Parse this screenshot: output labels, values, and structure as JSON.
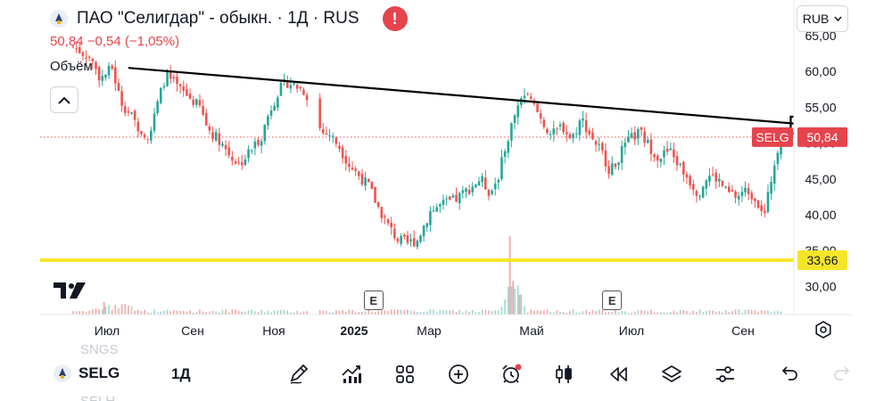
{
  "header": {
    "title": "ПАО \"Селигдар\" - обыкн. · 1Д · RUS",
    "price_change": "50,84 −0,54 (−1,05%)",
    "volume_label": "Объём",
    "currency": "RUB",
    "alert_glyph": "!"
  },
  "chart_data": {
    "type": "candlestick",
    "symbol": "SELG",
    "last_price": 50.84,
    "last_price_label": "50,84",
    "horizontal_level": 33.66,
    "horizontal_level_label": "33,66",
    "horizontal_level_color": "#f5e52a",
    "up_color": "#26a69a",
    "down_color": "#ef5350",
    "ylim": [
      26.5,
      63
    ],
    "y_ticks": [
      "30,00",
      "35,00",
      "40,00",
      "45,00",
      "50,00",
      "55,00",
      "60,00",
      "65,00"
    ],
    "x_ticks": [
      "Июл",
      "Сен",
      "Ноя",
      "2025",
      "Мар",
      "Май",
      "Июл",
      "Сен"
    ],
    "x_start": "2024-05-22",
    "close_path": [
      [
        "2024-05-22",
        63.5
      ],
      [
        "2024-06-01",
        62
      ],
      [
        "2024-06-08",
        59
      ],
      [
        "2024-06-15",
        60.5
      ],
      [
        "2024-06-20",
        56
      ],
      [
        "2024-06-26",
        54
      ],
      [
        "2024-07-02",
        52
      ],
      [
        "2024-07-08",
        51
      ],
      [
        "2024-07-13",
        55.5
      ],
      [
        "2024-07-18",
        59.5
      ],
      [
        "2024-07-24",
        58
      ],
      [
        "2024-08-01",
        56.5
      ],
      [
        "2024-08-08",
        55
      ],
      [
        "2024-08-13",
        52
      ],
      [
        "2024-08-20",
        50.5
      ],
      [
        "2024-08-26",
        48.5
      ],
      [
        "2024-09-01",
        47
      ],
      [
        "2024-09-05",
        48
      ],
      [
        "2024-09-10",
        49.5
      ],
      [
        "2024-09-15",
        51
      ],
      [
        "2024-09-20",
        54.5
      ],
      [
        "2024-09-26",
        57.5
      ],
      [
        "2024-10-01",
        58.5
      ],
      [
        "2024-10-06",
        58
      ],
      [
        "2024-10-12",
        57.2
      ],
      [
        "2024-10-22",
        51.5
      ],
      [
        "2024-10-27",
        51.2
      ],
      [
        "2024-11-02",
        49.5
      ],
      [
        "2024-11-08",
        47
      ],
      [
        "2024-11-14",
        45.5
      ],
      [
        "2024-11-20",
        44
      ],
      [
        "2024-11-26",
        41
      ],
      [
        "2024-12-02",
        38.5
      ],
      [
        "2024-12-08",
        36.5
      ],
      [
        "2024-12-14",
        36
      ],
      [
        "2024-12-20",
        36.5
      ],
      [
        "2024-12-28",
        40.5
      ],
      [
        "2025-01-05",
        41.5
      ],
      [
        "2025-01-12",
        42
      ],
      [
        "2025-01-20",
        43.5
      ],
      [
        "2025-01-28",
        45
      ],
      [
        "2025-02-03",
        43
      ],
      [
        "2025-02-08",
        45.5
      ],
      [
        "2025-02-13",
        50
      ],
      [
        "2025-02-18",
        54
      ],
      [
        "2025-02-23",
        57
      ],
      [
        "2025-03-01",
        55.5
      ],
      [
        "2025-03-07",
        53
      ],
      [
        "2025-03-13",
        51
      ],
      [
        "2025-03-19",
        52.5
      ],
      [
        "2025-03-25",
        50.5
      ],
      [
        "2025-03-31",
        53.5
      ],
      [
        "2025-04-06",
        51
      ],
      [
        "2025-04-12",
        49
      ],
      [
        "2025-04-18",
        46
      ],
      [
        "2025-04-24",
        48.5
      ],
      [
        "2025-04-30",
        50.5
      ],
      [
        "2025-05-06",
        51.5
      ],
      [
        "2025-05-12",
        49.5
      ],
      [
        "2025-05-18",
        48
      ],
      [
        "2025-05-24",
        49
      ],
      [
        "2025-05-30",
        47
      ],
      [
        "2025-06-05",
        45
      ],
      [
        "2025-06-11",
        43
      ],
      [
        "2025-06-17",
        45.5
      ],
      [
        "2025-06-23",
        45
      ],
      [
        "2025-06-29",
        43
      ],
      [
        "2025-07-05",
        42.5
      ],
      [
        "2025-07-11",
        43.5
      ],
      [
        "2025-07-17",
        42.2
      ],
      [
        "2025-07-22",
        40
      ],
      [
        "2025-07-26",
        45
      ],
      [
        "2025-07-31",
        50.5
      ],
      [
        "2025-08-02",
        50.84
      ]
    ],
    "trendline": {
      "from": [
        "2024-06-25",
        60.5
      ],
      "to": [
        "2025-09-01",
        52.3
      ]
    },
    "arrow": {
      "from": [
        "2025-09-02",
        46
      ],
      "to": [
        "2025-08-07",
        51.7
      ]
    },
    "earnings_labels": [
      "E",
      "E"
    ],
    "earnings_dates": [
      "2024-11-23",
      "2025-04-19"
    ]
  },
  "toolbar": {
    "symbol": "SELG",
    "interval": "1Д",
    "ghost_above": "SNGS",
    "ghost_below": "SELH",
    "icons": [
      "pencil-icon",
      "chart-line-icon",
      "grid-icon",
      "plus-circle-icon",
      "alarm-icon",
      "candles-icon",
      "replay-icon",
      "layers-icon",
      "settings-sliders-icon",
      "undo-icon",
      "redo-icon"
    ]
  }
}
